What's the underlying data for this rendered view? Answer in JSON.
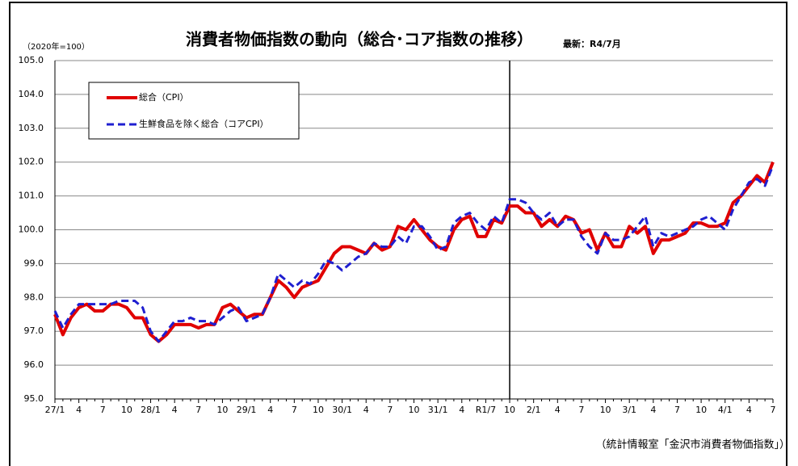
{
  "chart_data": {
    "type": "line",
    "title": "消費者物価指数の動向（総合･コア指数の推移）",
    "subtitle": "最新：R4/7月",
    "unit_label": "（2020年=100）",
    "source": "（統計情報室「金沢市消費者物価指数」）",
    "categories": [
      "27/1",
      null,
      null,
      "4",
      null,
      null,
      "7",
      null,
      null,
      "10",
      null,
      null,
      "28/1",
      null,
      null,
      "4",
      null,
      null,
      "7",
      null,
      null,
      "10",
      null,
      null,
      "29/1",
      null,
      null,
      "4",
      null,
      null,
      "7",
      null,
      null,
      "10",
      null,
      null,
      "30/1",
      null,
      null,
      "4",
      null,
      null,
      "7",
      null,
      null,
      "10",
      null,
      null,
      "31/1",
      null,
      null,
      "4",
      null,
      null,
      "R1/7",
      null,
      null,
      "10",
      null,
      null,
      "2/1",
      null,
      null,
      "4",
      null,
      null,
      "7",
      null,
      null,
      "10",
      null,
      null,
      "3/1",
      null,
      null,
      "4",
      null,
      null,
      "7",
      null,
      null,
      "10",
      null,
      null,
      "4/1",
      null,
      null,
      "4",
      null,
      null,
      "7"
    ],
    "series": [
      {
        "name": "総合（CPI）",
        "color": "#e00000",
        "dash": false,
        "values": [
          97.5,
          96.9,
          97.4,
          97.7,
          97.8,
          97.6,
          97.6,
          97.8,
          97.8,
          97.7,
          97.4,
          97.4,
          96.9,
          96.7,
          96.9,
          97.2,
          97.2,
          97.2,
          97.1,
          97.2,
          97.2,
          97.7,
          97.8,
          97.6,
          97.4,
          97.5,
          97.5,
          98.0,
          98.5,
          98.3,
          98.0,
          98.3,
          98.4,
          98.5,
          98.9,
          99.3,
          99.5,
          99.5,
          99.4,
          99.3,
          99.6,
          99.4,
          99.5,
          100.1,
          100.0,
          100.3,
          100.0,
          99.7,
          99.5,
          99.4,
          100.0,
          100.3,
          100.4,
          99.8,
          99.8,
          100.3,
          100.2,
          100.7,
          100.7,
          100.5,
          100.5,
          100.1,
          100.3,
          100.1,
          100.4,
          100.3,
          99.9,
          100.0,
          99.4,
          99.9,
          99.5,
          99.5,
          100.1,
          99.9,
          100.1,
          99.3,
          99.7,
          99.7,
          99.8,
          99.9,
          100.2,
          100.2,
          100.1,
          100.1,
          100.2,
          100.8,
          101.0,
          101.3,
          101.6,
          101.4,
          102.0
        ]
      },
      {
        "name": "生鮮食品を除く総合（コアCPI）",
        "color": "#1f1fd0",
        "dash": true,
        "values": [
          97.6,
          97.1,
          97.5,
          97.8,
          97.8,
          97.8,
          97.8,
          97.8,
          97.9,
          97.9,
          97.9,
          97.7,
          97.0,
          96.7,
          97.0,
          97.3,
          97.3,
          97.4,
          97.3,
          97.3,
          97.2,
          97.4,
          97.6,
          97.7,
          97.3,
          97.4,
          97.5,
          98.0,
          98.7,
          98.5,
          98.3,
          98.5,
          98.4,
          98.7,
          99.1,
          99.0,
          98.8,
          99.0,
          99.2,
          99.3,
          99.6,
          99.5,
          99.5,
          99.8,
          99.6,
          100.1,
          100.1,
          99.8,
          99.4,
          99.5,
          100.2,
          100.4,
          100.5,
          100.2,
          100.0,
          100.4,
          100.2,
          100.9,
          100.9,
          100.8,
          100.5,
          100.3,
          100.5,
          100.1,
          100.3,
          100.3,
          99.8,
          99.5,
          99.3,
          99.9,
          99.7,
          99.7,
          99.8,
          100.1,
          100.4,
          99.5,
          99.9,
          99.8,
          99.9,
          100.0,
          100.1,
          100.3,
          100.4,
          100.2,
          100.0,
          100.6,
          101.0,
          101.4,
          101.5,
          101.3,
          101.9
        ]
      }
    ],
    "ylim": [
      95,
      105
    ],
    "yticks": [
      {
        "value": 95,
        "label": "95.0"
      },
      {
        "value": 96,
        "label": "96.0"
      },
      {
        "value": 97,
        "label": "97.0"
      },
      {
        "value": 98,
        "label": "98.0"
      },
      {
        "value": 99,
        "label": "99.0"
      },
      {
        "value": 100,
        "label": "100.0"
      },
      {
        "value": 101,
        "label": "101.0"
      },
      {
        "value": 102,
        "label": "102.0"
      },
      {
        "value": 103,
        "label": "103.0"
      },
      {
        "value": 104,
        "label": "104.0"
      },
      {
        "value": 105,
        "label": "105.0"
      }
    ],
    "grid": true,
    "vline_at": 57,
    "legend": "top-left"
  }
}
